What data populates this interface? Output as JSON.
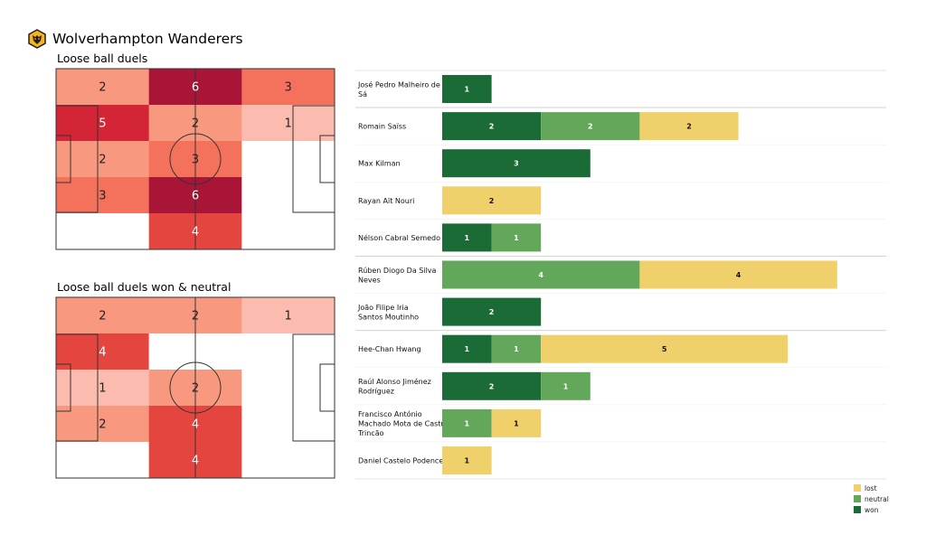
{
  "header": {
    "team": "Wolverhampton Wanderers",
    "logo_icon": "wolves-crest-icon"
  },
  "colors": {
    "won": "#1a6b35",
    "neutral": "#63a85a",
    "lost": "#f0d06b",
    "heat_scale": [
      "#ffffff",
      "#fbbcaf",
      "#f8997f",
      "#f4725c",
      "#e4463f",
      "#d32535",
      "#a81536"
    ]
  },
  "pitches": [
    {
      "title": "Loose ball duels",
      "grid": [
        [
          2,
          6,
          3
        ],
        [
          5,
          2,
          1
        ],
        [
          2,
          3,
          0
        ],
        [
          3,
          6,
          0
        ],
        [
          0,
          4,
          0
        ]
      ],
      "labels": [
        [
          "2",
          "6",
          "3"
        ],
        [
          "5",
          "2",
          "1"
        ],
        [
          "2",
          "3",
          ""
        ],
        [
          "3",
          "6",
          ""
        ],
        [
          "",
          "4",
          ""
        ]
      ]
    },
    {
      "title": "Loose ball duels won & neutral",
      "grid": [
        [
          2,
          2,
          1
        ],
        [
          4,
          0,
          0
        ],
        [
          1,
          2,
          0
        ],
        [
          2,
          4,
          0
        ],
        [
          0,
          4,
          0
        ]
      ],
      "labels": [
        [
          "2",
          "2",
          "1"
        ],
        [
          "4",
          "",
          ""
        ],
        [
          "1",
          "2",
          ""
        ],
        [
          "2",
          "4",
          ""
        ],
        [
          "",
          "4",
          ""
        ]
      ]
    }
  ],
  "chart_data": [
    {
      "type": "heatmap",
      "title": "Loose ball duels",
      "rows": 5,
      "cols": 3,
      "values": [
        [
          2,
          6,
          3
        ],
        [
          5,
          2,
          1
        ],
        [
          2,
          3,
          0
        ],
        [
          3,
          6,
          0
        ],
        [
          0,
          4,
          0
        ]
      ]
    },
    {
      "type": "heatmap",
      "title": "Loose ball duels won & neutral",
      "rows": 5,
      "cols": 3,
      "values": [
        [
          2,
          2,
          1
        ],
        [
          4,
          0,
          0
        ],
        [
          1,
          2,
          0
        ],
        [
          2,
          4,
          0
        ],
        [
          0,
          4,
          0
        ]
      ]
    },
    {
      "type": "bar",
      "orientation": "horizontal",
      "stacked": true,
      "categories": [
        "José Pedro Malheiro de Sá",
        "Romain Saïss",
        "Max Kilman",
        "Rayan Aït Nouri",
        "Nélson Cabral Semedo",
        "Rúben Diogo Da Silva Neves",
        "João Filipe Iria Santos Moutinho",
        "Hee-Chan Hwang",
        "Raúl Alonso Jiménez Rodríguez",
        "Francisco António Machado Mota de Castro Trincão",
        "Daniel Castelo Podence"
      ],
      "series": [
        {
          "name": "won",
          "values": [
            1,
            2,
            3,
            0,
            1,
            0,
            2,
            1,
            2,
            0,
            0
          ]
        },
        {
          "name": "neutral",
          "values": [
            0,
            2,
            0,
            0,
            1,
            4,
            0,
            1,
            1,
            1,
            0
          ]
        },
        {
          "name": "lost",
          "values": [
            0,
            2,
            0,
            2,
            0,
            4,
            0,
            5,
            0,
            1,
            1
          ]
        }
      ],
      "group_separators_after": [
        0,
        4,
        6
      ],
      "legend": {
        "position": "bottom-right",
        "entries": [
          "lost",
          "neutral",
          "won"
        ]
      }
    }
  ]
}
